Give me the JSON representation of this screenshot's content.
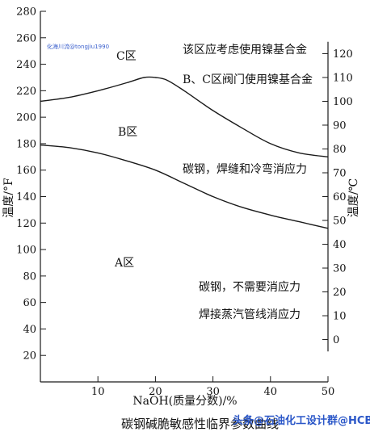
{
  "chart_data": {
    "type": "line",
    "title": "碳钢碱脆敏感性临界参数曲线",
    "xlabel": "NaOH(质量分数)/%",
    "ylabel_left": "温度/°F",
    "ylabel_right": "温度/℃",
    "xlim": [
      0,
      50
    ],
    "ylim": [
      0,
      280
    ],
    "x_ticks": [
      "10",
      "20",
      "30",
      "40",
      "50"
    ],
    "x_tick_values": [
      10,
      20,
      30,
      40,
      50
    ],
    "y_ticks_left": [
      "20",
      "40",
      "60",
      "80",
      "100",
      "120",
      "140",
      "160",
      "180",
      "200",
      "220",
      "240",
      "260",
      "280"
    ],
    "y_tick_values_left": [
      20,
      40,
      60,
      80,
      100,
      120,
      140,
      160,
      180,
      200,
      220,
      240,
      260,
      280
    ],
    "y_ticks_right": [
      "0",
      "10",
      "20",
      "30",
      "40",
      "50",
      "60",
      "70",
      "80",
      "90",
      "100",
      "110",
      "120"
    ],
    "y_tick_values_right_celsius": [
      0,
      10,
      20,
      30,
      40,
      50,
      60,
      70,
      80,
      90,
      100,
      110,
      120
    ],
    "grid": false,
    "series": [
      {
        "x": [
          0,
          5,
          10,
          15,
          18,
          20,
          22,
          25,
          30,
          35,
          40,
          45,
          50
        ],
        "y": [
          212,
          215,
          220,
          226,
          230,
          230,
          228,
          220,
          205,
          192,
          180,
          173,
          170
        ]
      },
      {
        "x": [
          0,
          5,
          10,
          15,
          20,
          25,
          30,
          35,
          40,
          45,
          50
        ],
        "y": [
          179,
          177,
          173,
          167,
          160,
          150,
          140,
          132,
          126,
          121,
          116
        ]
      }
    ],
    "annotations": [
      {
        "id": "region-c",
        "text": "C区"
      },
      {
        "id": "region-c-note",
        "text": "该区应考虑使用镍基合金"
      },
      {
        "id": "region-bc-note",
        "text": "B、C区阀门使用镍基合金"
      },
      {
        "id": "region-b",
        "text": "B区"
      },
      {
        "id": "region-b-note",
        "text": "碳钢，焊缝和冷弯消应力"
      },
      {
        "id": "region-a",
        "text": "A区"
      },
      {
        "id": "region-a-note1",
        "text": "碳钢，不需要消应力"
      },
      {
        "id": "region-a-note2",
        "text": "焊接蒸汽管线消应力"
      }
    ]
  },
  "watermarks": {
    "top_left": "化海川流@tongjiu1990",
    "bottom_right": "头条@石油化工设计群@HCBBS"
  }
}
